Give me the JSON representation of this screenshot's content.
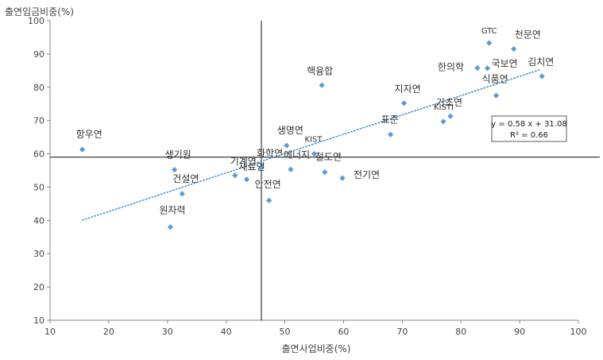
{
  "chart_data": {
    "type": "scatter",
    "title": "",
    "xlabel": "출연사업비중(%)",
    "ylabel": "출연임금비중(%)",
    "xlim": [
      10,
      100
    ],
    "ylim": [
      10,
      100
    ],
    "xticks": [
      "10",
      "20",
      "30",
      "40",
      "50",
      "60",
      "70",
      "80",
      "90",
      "100"
    ],
    "yticks": [
      "10",
      "20",
      "30",
      "40",
      "50",
      "60",
      "70",
      "80",
      "90",
      "100"
    ],
    "grid": false,
    "reference_lines": {
      "x": 46,
      "y": 59
    },
    "marker_color": "#5B9BD5",
    "trendline": {
      "slope": 0.58,
      "intercept": 31.08,
      "x_start": 15.5,
      "x_end": 93.5,
      "style": "dotted",
      "color": "#4A90C8"
    },
    "equation_box": {
      "equation": "y = 0.58 x + 31.08",
      "r2": "R² = 0.66"
    },
    "points": [
      {
        "label": "항우연",
        "x": 15.5,
        "y": 61.3
      },
      {
        "label": "생기원",
        "x": 31.2,
        "y": 55.2
      },
      {
        "label": "건설연",
        "x": 32.5,
        "y": 48
      },
      {
        "label": "원자력",
        "x": 30.5,
        "y": 38
      },
      {
        "label": "기계연",
        "x": 41.5,
        "y": 53.5
      },
      {
        "label": "재료연",
        "x": 43.5,
        "y": 52.3
      },
      {
        "label": "화학연",
        "x": 46,
        "y": 55.8
      },
      {
        "label": "에너지",
        "x": 51,
        "y": 55.3
      },
      {
        "label": "안전연",
        "x": 47.3,
        "y": 46
      },
      {
        "label": "생명연",
        "x": 50.3,
        "y": 62.5
      },
      {
        "label": "KIST",
        "x": 55,
        "y": 60
      },
      {
        "label": "철도연",
        "x": 56.8,
        "y": 54.5
      },
      {
        "label": "전기연",
        "x": 59.8,
        "y": 52.7
      },
      {
        "label": "핵융합",
        "x": 56.3,
        "y": 80.6
      },
      {
        "label": "표준",
        "x": 68,
        "y": 65.8
      },
      {
        "label": "지자연",
        "x": 70.3,
        "y": 75.2
      },
      {
        "label": "KISTI",
        "x": 77,
        "y": 69.7
      },
      {
        "label": "기초연",
        "x": 78.2,
        "y": 71.3
      },
      {
        "label": "한의학",
        "x": 82.8,
        "y": 85.8
      },
      {
        "label": "국보연",
        "x": 84.5,
        "y": 85.7
      },
      {
        "label": "GTC",
        "x": 84.8,
        "y": 93.3
      },
      {
        "label": "천문연",
        "x": 89,
        "y": 91.5
      },
      {
        "label": "식품연",
        "x": 86,
        "y": 77.5
      },
      {
        "label": "김치연",
        "x": 93.8,
        "y": 83.3
      }
    ]
  }
}
